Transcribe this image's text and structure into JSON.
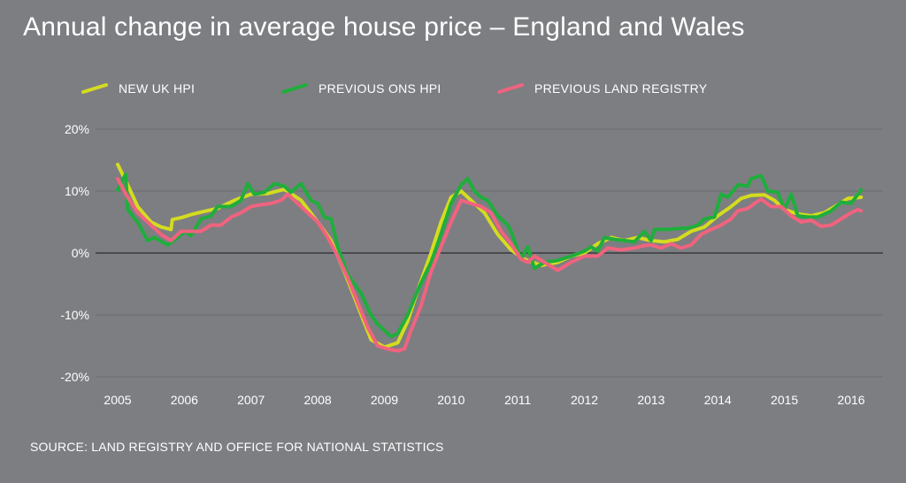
{
  "chart_data": {
    "type": "line",
    "title": "Annual change in average house price – England and Wales",
    "source": "SOURCE: LAND REGISTRY AND OFFICE FOR NATIONAL STATISTICS",
    "xlabel": "",
    "ylabel": "",
    "x_ticks": [
      "2005",
      "2006",
      "2007",
      "2008",
      "2009",
      "2010",
      "2011",
      "2012",
      "2013",
      "2014",
      "2015",
      "2016"
    ],
    "xlim": [
      2005,
      2016
    ],
    "y_ticks": [
      {
        "value": 20,
        "label": "20%"
      },
      {
        "value": 10,
        "label": "10%"
      },
      {
        "value": 0,
        "label": "0%"
      },
      {
        "value": -10,
        "label": "-10%"
      },
      {
        "value": -20,
        "label": "-20%"
      }
    ],
    "ylim": [
      -20,
      20
    ],
    "legend_position": "top",
    "series": [
      {
        "name": "NEW UK HPI",
        "color": "#d4dc1f",
        "points": [
          [
            2005.0,
            14.3
          ],
          [
            2005.15,
            11.0
          ],
          [
            2005.3,
            7.5
          ],
          [
            2005.5,
            5.0
          ],
          [
            2005.65,
            4.2
          ],
          [
            2005.8,
            3.8
          ],
          [
            2005.82,
            5.4
          ],
          [
            2005.95,
            5.7
          ],
          [
            2006.1,
            6.2
          ],
          [
            2006.25,
            6.6
          ],
          [
            2006.5,
            7.2
          ],
          [
            2006.75,
            8.5
          ],
          [
            2007.0,
            9.5
          ],
          [
            2007.25,
            9.6
          ],
          [
            2007.5,
            10.3
          ],
          [
            2007.75,
            8.5
          ],
          [
            2008.0,
            5.0
          ],
          [
            2008.2,
            2.0
          ],
          [
            2008.4,
            -3.0
          ],
          [
            2008.6,
            -8.5
          ],
          [
            2008.8,
            -14.0
          ],
          [
            2009.0,
            -15.2
          ],
          [
            2009.2,
            -14.5
          ],
          [
            2009.35,
            -11.0
          ],
          [
            2009.5,
            -6.0
          ],
          [
            2009.7,
            0.0
          ],
          [
            2009.85,
            5.0
          ],
          [
            2010.0,
            9.0
          ],
          [
            2010.15,
            10.0
          ],
          [
            2010.3,
            8.5
          ],
          [
            2010.5,
            6.5
          ],
          [
            2010.7,
            3.0
          ],
          [
            2010.9,
            0.5
          ],
          [
            2011.1,
            -1.0
          ],
          [
            2011.35,
            -2.0
          ],
          [
            2011.6,
            -1.5
          ],
          [
            2011.8,
            -0.5
          ],
          [
            2012.0,
            0.0
          ],
          [
            2012.2,
            1.5
          ],
          [
            2012.4,
            2.5
          ],
          [
            2012.6,
            2.0
          ],
          [
            2012.8,
            2.5
          ],
          [
            2013.0,
            2.0
          ],
          [
            2013.2,
            1.8
          ],
          [
            2013.4,
            2.2
          ],
          [
            2013.6,
            3.5
          ],
          [
            2013.8,
            4.2
          ],
          [
            2014.0,
            6.0
          ],
          [
            2014.2,
            7.5
          ],
          [
            2014.35,
            8.8
          ],
          [
            2014.5,
            9.3
          ],
          [
            2014.7,
            9.4
          ],
          [
            2014.85,
            8.5
          ],
          [
            2015.0,
            7.0
          ],
          [
            2015.2,
            6.3
          ],
          [
            2015.4,
            6.0
          ],
          [
            2015.6,
            6.5
          ],
          [
            2015.8,
            7.8
          ],
          [
            2015.95,
            8.8
          ],
          [
            2016.15,
            9.0
          ]
        ]
      },
      {
        "name": "PREVIOUS ONS HPI",
        "color": "#1fae3c",
        "points": [
          [
            2005.0,
            10.2
          ],
          [
            2005.12,
            12.7
          ],
          [
            2005.15,
            7.0
          ],
          [
            2005.3,
            5.0
          ],
          [
            2005.45,
            2.0
          ],
          [
            2005.55,
            2.5
          ],
          [
            2005.75,
            1.3
          ],
          [
            2005.9,
            2.5
          ],
          [
            2006.0,
            3.5
          ],
          [
            2006.1,
            2.8
          ],
          [
            2006.25,
            5.5
          ],
          [
            2006.4,
            6.0
          ],
          [
            2006.5,
            7.5
          ],
          [
            2006.7,
            7.5
          ],
          [
            2006.85,
            8.5
          ],
          [
            2006.95,
            11.2
          ],
          [
            2007.05,
            9.5
          ],
          [
            2007.2,
            9.8
          ],
          [
            2007.35,
            11.2
          ],
          [
            2007.5,
            10.8
          ],
          [
            2007.6,
            9.8
          ],
          [
            2007.75,
            11.2
          ],
          [
            2007.9,
            8.5
          ],
          [
            2008.0,
            8.0
          ],
          [
            2008.1,
            5.8
          ],
          [
            2008.2,
            5.5
          ],
          [
            2008.3,
            1.0
          ],
          [
            2008.45,
            -3.5
          ],
          [
            2008.55,
            -5.0
          ],
          [
            2008.65,
            -6.5
          ],
          [
            2008.8,
            -10.0
          ],
          [
            2008.9,
            -11.5
          ],
          [
            2009.0,
            -12.5
          ],
          [
            2009.1,
            -13.5
          ],
          [
            2009.2,
            -13.0
          ],
          [
            2009.35,
            -10.0
          ],
          [
            2009.5,
            -6.0
          ],
          [
            2009.7,
            -1.5
          ],
          [
            2009.85,
            3.0
          ],
          [
            2010.0,
            8.0
          ],
          [
            2010.15,
            11.0
          ],
          [
            2010.25,
            12.0
          ],
          [
            2010.35,
            10.0
          ],
          [
            2010.45,
            9.0
          ],
          [
            2010.55,
            8.5
          ],
          [
            2010.7,
            6.0
          ],
          [
            2010.85,
            4.5
          ],
          [
            2010.9,
            3.5
          ],
          [
            2011.05,
            -1.0
          ],
          [
            2011.15,
            1.0
          ],
          [
            2011.25,
            -2.5
          ],
          [
            2011.4,
            -1.5
          ],
          [
            2011.6,
            -1.2
          ],
          [
            2011.8,
            -0.5
          ],
          [
            2012.0,
            0.3
          ],
          [
            2012.1,
            1.0
          ],
          [
            2012.2,
            0.3
          ],
          [
            2012.3,
            2.5
          ],
          [
            2012.45,
            2.2
          ],
          [
            2012.6,
            2.0
          ],
          [
            2012.75,
            1.8
          ],
          [
            2012.9,
            3.5
          ],
          [
            2013.0,
            2.0
          ],
          [
            2013.05,
            3.8
          ],
          [
            2013.25,
            3.8
          ],
          [
            2013.45,
            4.0
          ],
          [
            2013.55,
            4.0
          ],
          [
            2013.7,
            4.5
          ],
          [
            2013.8,
            5.5
          ],
          [
            2013.95,
            5.8
          ],
          [
            2014.05,
            9.5
          ],
          [
            2014.15,
            9.0
          ],
          [
            2014.3,
            11.0
          ],
          [
            2014.45,
            10.8
          ],
          [
            2014.5,
            12.0
          ],
          [
            2014.65,
            12.5
          ],
          [
            2014.75,
            10.0
          ],
          [
            2014.9,
            9.8
          ],
          [
            2015.0,
            7.0
          ],
          [
            2015.1,
            9.5
          ],
          [
            2015.2,
            6.0
          ],
          [
            2015.35,
            5.8
          ],
          [
            2015.5,
            5.8
          ],
          [
            2015.7,
            6.8
          ],
          [
            2015.85,
            8.2
          ],
          [
            2016.0,
            8.0
          ],
          [
            2016.15,
            10.2
          ]
        ]
      },
      {
        "name": "PREVIOUS LAND REGISTRY",
        "color": "#f0637e",
        "points": [
          [
            2005.0,
            12.0
          ],
          [
            2005.15,
            9.0
          ],
          [
            2005.3,
            6.5
          ],
          [
            2005.5,
            4.5
          ],
          [
            2005.65,
            3.0
          ],
          [
            2005.8,
            2.0
          ],
          [
            2005.95,
            3.5
          ],
          [
            2006.1,
            3.5
          ],
          [
            2006.25,
            3.5
          ],
          [
            2006.4,
            4.5
          ],
          [
            2006.55,
            4.5
          ],
          [
            2006.7,
            5.8
          ],
          [
            2006.85,
            6.5
          ],
          [
            2007.0,
            7.5
          ],
          [
            2007.15,
            7.8
          ],
          [
            2007.3,
            8.0
          ],
          [
            2007.45,
            8.5
          ],
          [
            2007.55,
            9.5
          ],
          [
            2007.7,
            8.0
          ],
          [
            2007.85,
            6.5
          ],
          [
            2008.0,
            5.0
          ],
          [
            2008.15,
            2.5
          ],
          [
            2008.3,
            -0.5
          ],
          [
            2008.45,
            -4.0
          ],
          [
            2008.6,
            -8.0
          ],
          [
            2008.75,
            -12.0
          ],
          [
            2008.9,
            -15.0
          ],
          [
            2009.05,
            -15.5
          ],
          [
            2009.2,
            -15.8
          ],
          [
            2009.3,
            -15.5
          ],
          [
            2009.4,
            -12.5
          ],
          [
            2009.55,
            -8.5
          ],
          [
            2009.7,
            -3.0
          ],
          [
            2009.85,
            1.0
          ],
          [
            2010.0,
            5.0
          ],
          [
            2010.15,
            8.5
          ],
          [
            2010.3,
            8.0
          ],
          [
            2010.45,
            7.5
          ],
          [
            2010.6,
            6.5
          ],
          [
            2010.75,
            3.5
          ],
          [
            2010.9,
            1.5
          ],
          [
            2011.05,
            -1.0
          ],
          [
            2011.15,
            -1.5
          ],
          [
            2011.25,
            -0.5
          ],
          [
            2011.4,
            -1.5
          ],
          [
            2011.6,
            -2.8
          ],
          [
            2011.8,
            -1.5
          ],
          [
            2012.0,
            -0.5
          ],
          [
            2012.1,
            -0.5
          ],
          [
            2012.2,
            -0.5
          ],
          [
            2012.35,
            0.8
          ],
          [
            2012.55,
            0.5
          ],
          [
            2012.75,
            0.8
          ],
          [
            2012.9,
            1.2
          ],
          [
            2013.0,
            1.3
          ],
          [
            2013.15,
            0.8
          ],
          [
            2013.3,
            1.5
          ],
          [
            2013.45,
            0.8
          ],
          [
            2013.6,
            1.3
          ],
          [
            2013.75,
            3.0
          ],
          [
            2013.9,
            3.8
          ],
          [
            2014.05,
            4.5
          ],
          [
            2014.2,
            5.5
          ],
          [
            2014.3,
            6.8
          ],
          [
            2014.45,
            7.2
          ],
          [
            2014.55,
            8.0
          ],
          [
            2014.65,
            8.7
          ],
          [
            2014.8,
            7.5
          ],
          [
            2014.95,
            7.5
          ],
          [
            2015.1,
            6.0
          ],
          [
            2015.25,
            5.0
          ],
          [
            2015.4,
            5.3
          ],
          [
            2015.55,
            4.3
          ],
          [
            2015.7,
            4.5
          ],
          [
            2015.85,
            5.5
          ],
          [
            2016.0,
            6.5
          ],
          [
            2016.1,
            7.0
          ],
          [
            2016.15,
            6.8
          ]
        ]
      }
    ]
  }
}
